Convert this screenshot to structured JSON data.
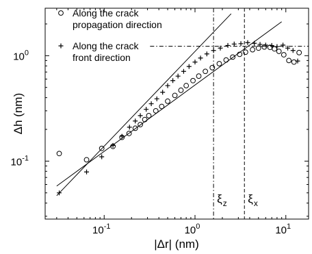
{
  "chart_data": {
    "type": "scatter",
    "xlabel": "|Δr| (nm)",
    "ylabel": "Δh (nm)",
    "xscale": "log",
    "yscale": "log",
    "xlim": [
      0.0224,
      17.8
    ],
    "ylim": [
      0.0282,
      2.82
    ],
    "x_ticks": [
      {
        "value": 0.1,
        "base": "10",
        "exp": "-1"
      },
      {
        "value": 1,
        "base": "10",
        "exp": "0"
      },
      {
        "value": 10,
        "base": "10",
        "exp": "1"
      }
    ],
    "y_ticks": [
      {
        "value": 0.1,
        "base": "10",
        "exp": "-1"
      },
      {
        "value": 1,
        "base": "10",
        "exp": "0"
      }
    ],
    "grid": false,
    "legend_position": "top-left",
    "series": [
      {
        "name": "Along the crack propagation direction",
        "legend_lines": [
          "Along the crack",
          "propagation direction"
        ],
        "marker": "circle",
        "points": [
          [
            0.032,
            0.118
          ],
          [
            0.064,
            0.103
          ],
          [
            0.094,
            0.132
          ],
          [
            0.125,
            0.138
          ],
          [
            0.157,
            0.168
          ],
          [
            0.188,
            0.183
          ],
          [
            0.22,
            0.205
          ],
          [
            0.25,
            0.222
          ],
          [
            0.28,
            0.248
          ],
          [
            0.31,
            0.27
          ],
          [
            0.37,
            0.3
          ],
          [
            0.43,
            0.33
          ],
          [
            0.5,
            0.37
          ],
          [
            0.6,
            0.42
          ],
          [
            0.7,
            0.47
          ],
          [
            0.8,
            0.52
          ],
          [
            0.95,
            0.58
          ],
          [
            1.1,
            0.64
          ],
          [
            1.3,
            0.71
          ],
          [
            1.55,
            0.77
          ],
          [
            1.85,
            0.84
          ],
          [
            2.2,
            0.91
          ],
          [
            2.6,
            0.97
          ],
          [
            3.1,
            1.03
          ],
          [
            3.6,
            1.08
          ],
          [
            4.3,
            1.14
          ],
          [
            5.0,
            1.18
          ],
          [
            5.8,
            1.21
          ],
          [
            6.7,
            1.2
          ],
          [
            7.5,
            1.16
          ],
          [
            8.4,
            1.1
          ],
          [
            9.5,
            1.02
          ],
          [
            10.8,
            0.9
          ],
          [
            12.3,
            0.87
          ],
          [
            14.0,
            1.07
          ]
        ]
      },
      {
        "name": "Along the crack front direction",
        "legend_lines": [
          "Along the crack",
          "front direction"
        ],
        "marker": "plus",
        "points": [
          [
            0.032,
            0.05
          ],
          [
            0.064,
            0.079
          ],
          [
            0.094,
            0.11
          ],
          [
            0.125,
            0.141
          ],
          [
            0.157,
            0.172
          ],
          [
            0.19,
            0.21
          ],
          [
            0.22,
            0.24
          ],
          [
            0.25,
            0.27
          ],
          [
            0.29,
            0.31
          ],
          [
            0.33,
            0.35
          ],
          [
            0.38,
            0.39
          ],
          [
            0.44,
            0.45
          ],
          [
            0.5,
            0.52
          ],
          [
            0.57,
            0.58
          ],
          [
            0.65,
            0.64
          ],
          [
            0.75,
            0.71
          ],
          [
            0.86,
            0.79
          ],
          [
            1.0,
            0.87
          ],
          [
            1.15,
            0.95
          ],
          [
            1.35,
            1.04
          ],
          [
            1.6,
            1.12
          ],
          [
            1.9,
            1.18
          ],
          [
            2.3,
            1.25
          ],
          [
            2.7,
            1.29
          ],
          [
            3.2,
            1.3
          ],
          [
            3.8,
            1.33
          ],
          [
            4.5,
            1.31
          ],
          [
            5.2,
            1.28
          ],
          [
            6.0,
            1.26
          ],
          [
            7.0,
            1.25
          ],
          [
            8.0,
            1.22
          ],
          [
            9.3,
            1.26
          ],
          [
            10.5,
            1.18
          ],
          [
            12.0,
            1.12
          ],
          [
            13.5,
            0.89
          ]
        ]
      }
    ],
    "fit_lines": [
      {
        "marker": "circle-fit",
        "points": [
          [
            0.03,
            0.058
          ],
          [
            9.0,
            2.1
          ]
        ]
      },
      {
        "marker": "plus-fit",
        "points": [
          [
            0.03,
            0.047
          ],
          [
            2.5,
            2.5
          ]
        ]
      }
    ],
    "reference_lines": [
      {
        "orientation": "horizontal",
        "value": 1.23,
        "style": "dash-dot"
      },
      {
        "orientation": "vertical",
        "value": 1.6,
        "style": "dash-dot",
        "label_base": "ξ",
        "label_sub": "z"
      },
      {
        "orientation": "vertical",
        "value": 3.5,
        "style": "dashed",
        "label_base": "ξ",
        "label_sub": "x"
      }
    ]
  },
  "colors": {
    "ink": "#000000",
    "background": "#ffffff"
  }
}
